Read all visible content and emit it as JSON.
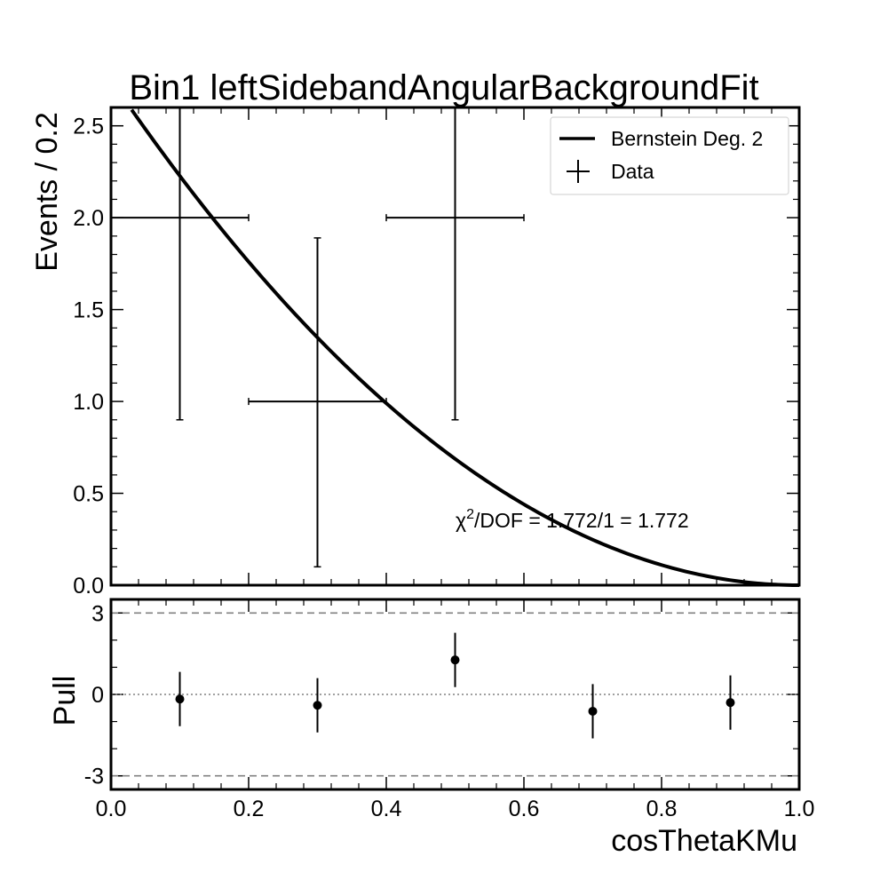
{
  "chart_data": [
    {
      "type": "scatter",
      "title": "Bin1 leftSidebandAngularBackgroundFit",
      "xlabel": "",
      "ylabel": "Events / 0.2",
      "xlim": [
        0.0,
        1.0
      ],
      "ylim": [
        0.0,
        2.6
      ],
      "grid": false,
      "legend": {
        "placement": "top-right",
        "entries": [
          "Bernstein Deg. 2",
          "Data"
        ]
      },
      "y_ticks": [
        "0.0",
        "0.5",
        "1.0",
        "1.5",
        "2.0",
        "2.5"
      ],
      "series": [
        {
          "name": "Data",
          "type": "errorbar",
          "points": [
            {
              "x": 0.1,
              "xerr": 0.1,
              "y": 2,
              "ylow": 0.9,
              "yhigh": 2.6
            },
            {
              "x": 0.3,
              "xerr": 0.1,
              "y": 1,
              "ylow": 0.1,
              "yhigh": 1.89
            },
            {
              "x": 0.5,
              "xerr": 0.1,
              "y": 2,
              "ylow": 0.9,
              "yhigh": 2.6
            }
          ]
        },
        {
          "name": "Bernstein Deg. 2",
          "type": "line",
          "function": "bernstein2",
          "coefficients": [
            2.75,
            0.0,
            0.0
          ]
        }
      ],
      "annotation": {
        "text_prefix": "χ",
        "superscript": "2",
        "text_suffix": "/DOF = 1.772/1 = 1.772",
        "x": 0.5,
        "y": 0.32
      }
    },
    {
      "type": "scatter",
      "title": "",
      "xlabel": "cosThetaKMu",
      "ylabel": "Pull",
      "xlim": [
        0.0,
        1.0
      ],
      "ylim": [
        -3.5,
        3.5
      ],
      "grid": false,
      "x_ticks": [
        "0.0",
        "0.2",
        "0.4",
        "0.6",
        "0.8",
        "1.0"
      ],
      "y_ticks": [
        "3",
        "0",
        "-3"
      ],
      "reference_lines": [
        {
          "y": 3,
          "style": "dashed"
        },
        {
          "y": 0,
          "style": "dotted"
        },
        {
          "y": -3,
          "style": "dashed"
        }
      ],
      "series": [
        {
          "name": "Pull",
          "points": [
            {
              "x": 0.1,
              "y": -0.17,
              "err": 1.0
            },
            {
              "x": 0.3,
              "y": -0.4,
              "err": 1.0
            },
            {
              "x": 0.5,
              "y": 1.27,
              "err": 1.0
            },
            {
              "x": 0.7,
              "y": -0.62,
              "err": 1.0
            },
            {
              "x": 0.9,
              "y": -0.3,
              "err": 1.0
            }
          ]
        }
      ]
    }
  ]
}
